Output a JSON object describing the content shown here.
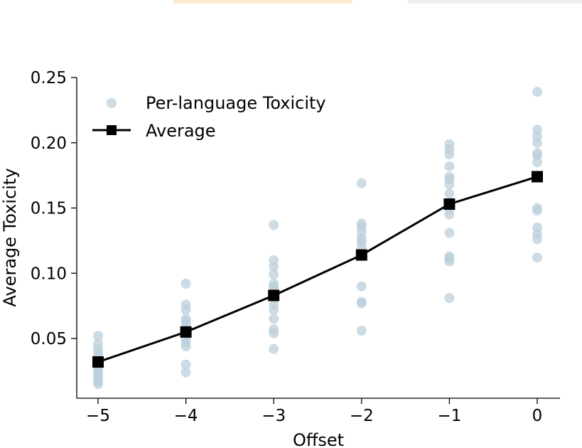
{
  "colors": {
    "strip_left": "#fde7cf",
    "strip_right": "#f1eef0",
    "scatter": "#bccfdb",
    "average": "#000000"
  },
  "chart_data": {
    "type": "line",
    "xlabel": "Offset",
    "ylabel": "Average Toxicity",
    "xlim": [
      -5.25,
      0.25
    ],
    "ylim": [
      0.008,
      0.25
    ],
    "x_ticks": [
      -5,
      -4,
      -3,
      -2,
      -1,
      0
    ],
    "x_tick_labels": [
      "−5",
      "−4",
      "−3",
      "−2",
      "−1",
      "0"
    ],
    "y_ticks": [
      0.05,
      0.1,
      0.15,
      0.2,
      0.25
    ],
    "y_tick_labels": [
      "0.05",
      "0.10",
      "0.15",
      "0.20",
      "0.25"
    ],
    "legend": {
      "position": "top-left",
      "entries": [
        "Per-language Toxicity",
        "Average"
      ]
    },
    "series": [
      {
        "name": "Per-language Toxicity",
        "kind": "scatter",
        "points": [
          {
            "x": -5,
            "values": [
              0.052,
              0.046,
              0.042,
              0.039,
              0.036,
              0.033,
              0.031,
              0.029,
              0.027,
              0.024,
              0.022,
              0.019,
              0.017,
              0.015
            ]
          },
          {
            "x": -4,
            "values": [
              0.092,
              0.076,
              0.072,
              0.065,
              0.063,
              0.061,
              0.056,
              0.053,
              0.05,
              0.047,
              0.044,
              0.03,
              0.024
            ]
          },
          {
            "x": -3,
            "values": [
              0.137,
              0.11,
              0.105,
              0.099,
              0.092,
              0.09,
              0.088,
              0.085,
              0.081,
              0.076,
              0.072,
              0.065,
              0.057,
              0.054,
              0.042
            ]
          },
          {
            "x": -2,
            "values": [
              0.169,
              0.138,
              0.136,
              0.132,
              0.127,
              0.124,
              0.12,
              0.114,
              0.09,
              0.078,
              0.077,
              0.056
            ]
          },
          {
            "x": -1,
            "values": [
              0.199,
              0.195,
              0.191,
              0.182,
              0.174,
              0.172,
              0.168,
              0.161,
              0.152,
              0.149,
              0.145,
              0.131,
              0.113,
              0.111,
              0.109,
              0.081
            ]
          },
          {
            "x": 0,
            "values": [
              0.239,
              0.21,
              0.205,
              0.2,
              0.192,
              0.19,
              0.185,
              0.15,
              0.148,
              0.135,
              0.13,
              0.126,
              0.112
            ]
          }
        ]
      },
      {
        "name": "Average",
        "kind": "line-with-square-markers",
        "x": [
          -5,
          -4,
          -3,
          -2,
          -1,
          0
        ],
        "y": [
          0.032,
          0.055,
          0.083,
          0.114,
          0.153,
          0.174
        ]
      }
    ]
  }
}
